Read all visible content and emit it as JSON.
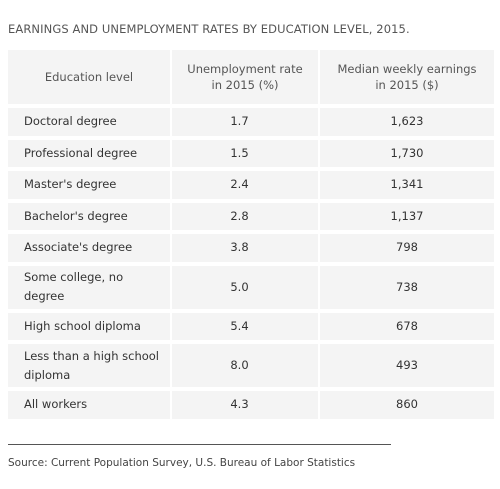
{
  "title": "EARNINGS AND UNEMPLOYMENT RATES BY EDUCATION LEVEL, 2015.",
  "table": {
    "headers": {
      "level": "Education level",
      "rate_line1": "Unemployment rate",
      "rate_line2": "in 2015 (%)",
      "earn_line1": "Median weekly earnings",
      "earn_line2": "in 2015 ($)"
    },
    "rows": [
      {
        "level": "Doctoral degree",
        "rate": "1.7",
        "earnings": "1,623"
      },
      {
        "level": "Professional degree",
        "rate": "1.5",
        "earnings": "1,730"
      },
      {
        "level": "Master's degree",
        "rate": "2.4",
        "earnings": "1,341"
      },
      {
        "level": "Bachelor's degree",
        "rate": "2.8",
        "earnings": "1,137"
      },
      {
        "level": "Associate's degree",
        "rate": "3.8",
        "earnings": "798"
      },
      {
        "level_line1": "Some college, no",
        "level_line2": "degree",
        "rate": "5.0",
        "earnings": "738"
      },
      {
        "level": "High school diploma",
        "rate": "5.4",
        "earnings": "678"
      },
      {
        "level_line1": "Less than a high school",
        "level_line2": "diploma",
        "rate": "8.0",
        "earnings": "493"
      },
      {
        "level": "All workers",
        "rate": "4.3",
        "earnings": "860"
      }
    ]
  },
  "source": "Source: Current Population Survey, U.S. Bureau of Labor Statistics"
}
